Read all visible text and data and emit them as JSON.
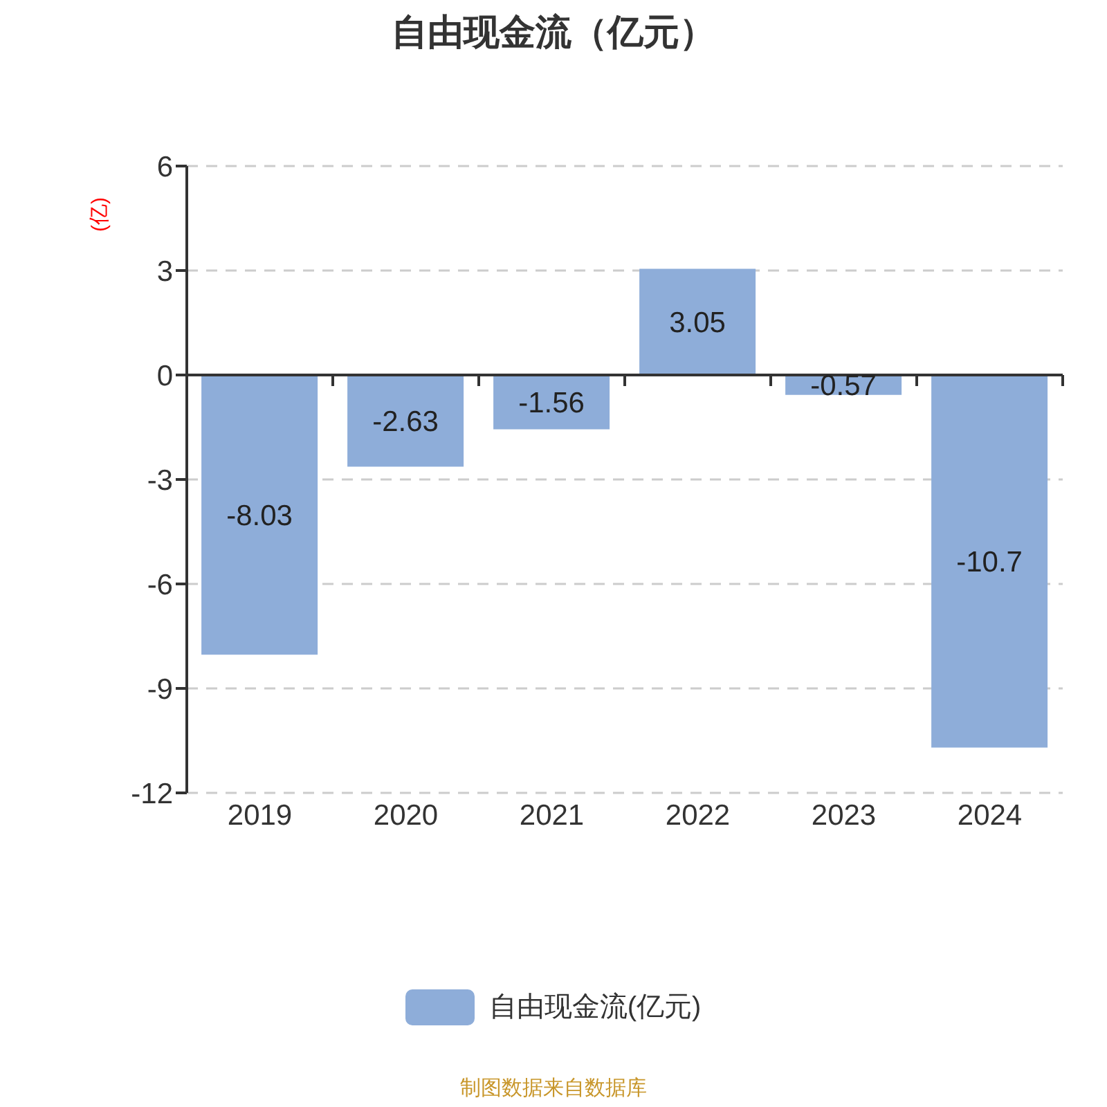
{
  "chart_data": {
    "type": "bar",
    "title": "自由现金流（亿元）",
    "ylabel": "(亿)",
    "categories": [
      "2019",
      "2020",
      "2021",
      "2022",
      "2023",
      "2024"
    ],
    "series": [
      {
        "name": "自由现金流(亿元)",
        "color": "#8eadd9",
        "values": [
          -8.03,
          -2.63,
          -1.56,
          3.05,
          -0.57,
          -10.7
        ]
      }
    ],
    "ylim": [
      -12,
      6
    ],
    "yticks": [
      -12,
      -9,
      -6,
      -3,
      0,
      3,
      6
    ],
    "grid": "y",
    "legend": "bottom",
    "data_labels": true,
    "annotations": [
      "制图数据来自数据库"
    ]
  }
}
